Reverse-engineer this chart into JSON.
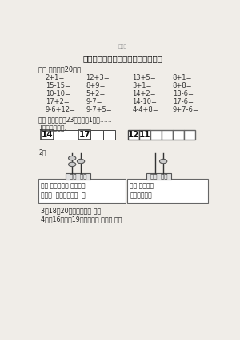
{
  "bg_color": "#f0ede8",
  "watermark": "帮分库",
  "title": "最新人教版一年级上册数学期末试卷",
  "section1_header": "一、 口算。（20分）",
  "math_rows": [
    [
      "2+1=",
      "12+3=",
      "13+5=",
      "8+1="
    ],
    [
      "15-15=",
      "8+9=",
      "3+1=",
      "8+8="
    ],
    [
      "10-10=",
      "5+2=",
      "14+2=",
      "18-6="
    ],
    [
      "17+2=",
      "9-7=",
      "14-10=",
      "17-6="
    ],
    [
      "9-6+12=",
      "9-7+5=",
      "4-4+8=",
      "9+7-6="
    ]
  ],
  "section2_header": "二、 填一填。（23分，每空1分）……",
  "sub1_label": "1、按规律续数.",
  "boxes_left": [
    "14",
    "",
    "",
    "17",
    "",
    ""
  ],
  "boxes_right": [
    "12",
    "11",
    "",
    "",
    "",
    ""
  ],
  "sub2_label": "2、",
  "abacus_label1": "十位  个位",
  "abacus_label2": "十位  个位",
  "text_box1_lines": [
    "有（ ）个十和（ ）个一的",
    "是：（  ），读作：（  ）"
  ],
  "text_box2_lines": [
    "有（ ）个十。",
    "这个数是：（"
  ],
  "sub3_text": "3、18和20中间的数是（ ）。",
  "sub4_text": "4、比16大、比19小的数是（ ）和（ ）。"
}
